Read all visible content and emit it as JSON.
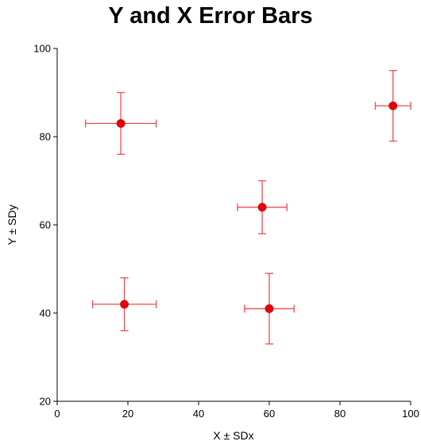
{
  "chart_data": {
    "type": "scatter",
    "title": "Y and X Error Bars",
    "xlabel": "X ± SDx",
    "ylabel": "Y ± SDy",
    "xlim": [
      0,
      100
    ],
    "ylim": [
      20,
      100
    ],
    "x_ticks": [
      0,
      20,
      40,
      60,
      80,
      100
    ],
    "y_ticks": [
      20,
      40,
      60,
      80,
      100
    ],
    "grid": false,
    "marker_color": "#e8000b",
    "error_bar_color": "#f04a4a",
    "points": [
      {
        "x": 18,
        "y": 83,
        "x_err": [
          8,
          28
        ],
        "y_err": [
          76,
          90
        ]
      },
      {
        "x": 19,
        "y": 42,
        "x_err": [
          10,
          28
        ],
        "y_err": [
          36,
          48
        ]
      },
      {
        "x": 58,
        "y": 64,
        "x_err": [
          51,
          65
        ],
        "y_err": [
          58,
          70
        ]
      },
      {
        "x": 60,
        "y": 41,
        "x_err": [
          53,
          67
        ],
        "y_err": [
          33,
          49
        ]
      },
      {
        "x": 95,
        "y": 87,
        "x_err": [
          90,
          100
        ],
        "y_err": [
          79,
          95
        ]
      }
    ]
  }
}
